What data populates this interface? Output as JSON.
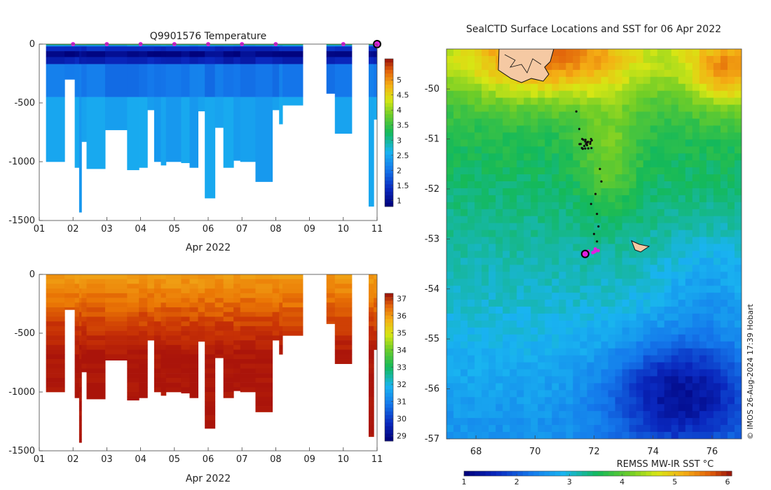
{
  "chart_data": [
    {
      "type": "heatmap",
      "title": "Q9901576  Temperature",
      "xlabel": "Apr 2022",
      "ylabel": "",
      "x_tick_labels": [
        "01",
        "02",
        "03",
        "04",
        "05",
        "06",
        "07",
        "08",
        "09",
        "10",
        "11"
      ],
      "x_range_days": [
        1,
        11
      ],
      "ylim": [
        -1500,
        0
      ],
      "y_ticks": [
        0,
        -500,
        -1000,
        -1500
      ],
      "colorbar": {
        "min": 0.8,
        "max": 5.7,
        "ticks": [
          "1",
          "1.5",
          "2",
          "2.5",
          "3",
          "3.5",
          "4",
          "4.5",
          "5"
        ]
      },
      "dive_marker_days": [
        2.0,
        3.0,
        4.0,
        5.0,
        6.0,
        7.0,
        8.0,
        10.0
      ],
      "current_day": 11.0,
      "profiles": [
        {
          "start": 1.2,
          "end": 1.75,
          "depth": 1000
        },
        {
          "start": 1.75,
          "end": 2.05,
          "depth": 300
        },
        {
          "start": 2.05,
          "end": 2.18,
          "depth": 1050
        },
        {
          "start": 2.18,
          "end": 2.25,
          "depth": 1430
        },
        {
          "start": 2.25,
          "end": 2.4,
          "depth": 830
        },
        {
          "start": 2.4,
          "end": 2.95,
          "depth": 1060
        },
        {
          "start": 2.95,
          "end": 3.6,
          "depth": 730
        },
        {
          "start": 3.6,
          "end": 3.95,
          "depth": 1070
        },
        {
          "start": 3.95,
          "end": 4.2,
          "depth": 1050
        },
        {
          "start": 4.2,
          "end": 4.4,
          "depth": 560
        },
        {
          "start": 4.4,
          "end": 4.6,
          "depth": 1000
        },
        {
          "start": 4.6,
          "end": 4.75,
          "depth": 1030
        },
        {
          "start": 4.75,
          "end": 5.2,
          "depth": 1000
        },
        {
          "start": 5.2,
          "end": 5.45,
          "depth": 1010
        },
        {
          "start": 5.45,
          "end": 5.7,
          "depth": 1050
        },
        {
          "start": 5.7,
          "end": 5.9,
          "depth": 570
        },
        {
          "start": 5.9,
          "end": 6.2,
          "depth": 1310
        },
        {
          "start": 6.2,
          "end": 6.45,
          "depth": 710
        },
        {
          "start": 6.45,
          "end": 6.75,
          "depth": 1050
        },
        {
          "start": 6.75,
          "end": 6.95,
          "depth": 990
        },
        {
          "start": 6.95,
          "end": 7.4,
          "depth": 1000
        },
        {
          "start": 7.4,
          "end": 7.9,
          "depth": 1170
        },
        {
          "start": 7.9,
          "end": 8.1,
          "depth": 560
        },
        {
          "start": 8.1,
          "end": 8.2,
          "depth": 680
        },
        {
          "start": 8.2,
          "end": 8.8,
          "depth": 520
        },
        {
          "start": 9.5,
          "end": 9.75,
          "depth": 420
        },
        {
          "start": 9.75,
          "end": 10.25,
          "depth": 760
        },
        {
          "start": 10.75,
          "end": 10.9,
          "depth": 1380
        },
        {
          "start": 10.9,
          "end": 11.0,
          "depth": 640
        }
      ]
    },
    {
      "type": "heatmap",
      "title": "",
      "xlabel": "Apr 2022",
      "ylabel": "",
      "x_tick_labels": [
        "01",
        "02",
        "03",
        "04",
        "05",
        "06",
        "07",
        "08",
        "09",
        "10",
        "11"
      ],
      "x_range_days": [
        1,
        11
      ],
      "ylim": [
        -1500,
        0
      ],
      "y_ticks": [
        0,
        -500,
        -1000,
        -1500
      ],
      "colorbar": {
        "min": 28.7,
        "max": 37.3,
        "ticks": [
          "29",
          "30",
          "31",
          "32",
          "33",
          "34",
          "35",
          "36",
          "37"
        ]
      }
    },
    {
      "type": "heatmap",
      "title": "SealCTD Surface Locations and SST for 06 Apr 2022",
      "xlabel": "",
      "ylabel": "",
      "x_tick_labels": [
        "68",
        "70",
        "72",
        "74",
        "76"
      ],
      "xlim": [
        67,
        77
      ],
      "y_tick_labels": [
        "-50",
        "-51",
        "-52",
        "-53",
        "-54",
        "-55",
        "-56",
        "-57"
      ],
      "ylim": [
        -57,
        -49.2
      ],
      "colorbar": {
        "label": "REMSS MW-IR SST °C",
        "min": 1,
        "max": 6,
        "ticks": [
          "1",
          "2",
          "3",
          "4",
          "5",
          "6"
        ]
      },
      "current_position": {
        "lon": 71.7,
        "lat": -53.3
      },
      "track": [
        {
          "lon": 71.4,
          "lat": -50.45
        },
        {
          "lon": 71.5,
          "lat": -50.8
        },
        {
          "lon": 71.6,
          "lat": -51.0
        },
        {
          "lon": 71.55,
          "lat": -51.1
        },
        {
          "lon": 71.7,
          "lat": -51.05
        },
        {
          "lon": 71.9,
          "lat": -51.0
        },
        {
          "lon": 72.2,
          "lat": -51.6
        },
        {
          "lon": 72.25,
          "lat": -51.85
        },
        {
          "lon": 72.05,
          "lat": -52.1
        },
        {
          "lon": 71.9,
          "lat": -52.3
        },
        {
          "lon": 72.1,
          "lat": -52.5
        },
        {
          "lon": 72.15,
          "lat": -52.75
        },
        {
          "lon": 72.0,
          "lat": -52.9
        },
        {
          "lon": 72.1,
          "lat": -53.05
        },
        {
          "lon": 72.05,
          "lat": -53.2
        },
        {
          "lon": 71.7,
          "lat": -53.3
        }
      ],
      "credit": "© IMOS 26-Aug-2024 17:39 Hobart"
    }
  ]
}
